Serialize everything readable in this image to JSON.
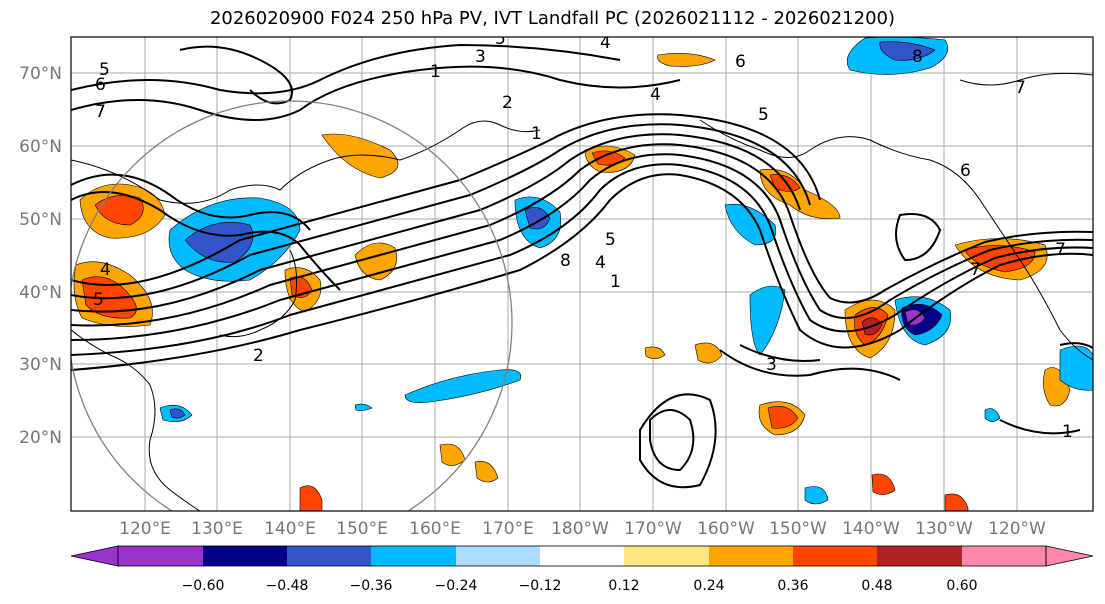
{
  "title": "2026020900 F024 250 hPa PV, IVT Landfall PC (2026021112 - 2026021200)",
  "lat_labels": [
    "70°N",
    "60°N",
    "50°N",
    "40°N",
    "30°N",
    "20°N"
  ],
  "lon_labels": [
    "120°E",
    "130°E",
    "140°E",
    "150°E",
    "160°E",
    "170°E",
    "180°W",
    "170°W",
    "160°W",
    "150°W",
    "140°W",
    "130°W",
    "120°W"
  ],
  "colorbar": {
    "colors": [
      "#9933cc",
      "#000088",
      "#3355cc",
      "#00bbff",
      "#aaddff",
      "#ffffff",
      "#ffe680",
      "#ffa500",
      "#ff4500",
      "#b22222",
      "#ff88aa"
    ],
    "tick_labels": [
      "−0.60",
      "−0.48",
      "−0.36",
      "−0.24",
      "−0.12",
      "0.12",
      "0.24",
      "0.36",
      "0.48",
      "0.60"
    ]
  },
  "contour_labels": [
    "5",
    "4",
    "3",
    "1",
    "6",
    "2",
    "7",
    "1",
    "8",
    "6",
    "7",
    "4",
    "5",
    "7",
    "5",
    "4",
    "2",
    "3",
    "5",
    "1",
    "7",
    "8",
    "6",
    "5",
    "4",
    "1"
  ],
  "colors": {
    "negative_strong": "#3355cc",
    "negative": "#00bbff",
    "positive": "#ffa500",
    "positive_strong": "#ff4500",
    "extreme_pos": "#b22222",
    "extreme_neg": "#9933cc",
    "contour": "#000000",
    "grid": "#aaaaaa",
    "circle": "#808080"
  }
}
